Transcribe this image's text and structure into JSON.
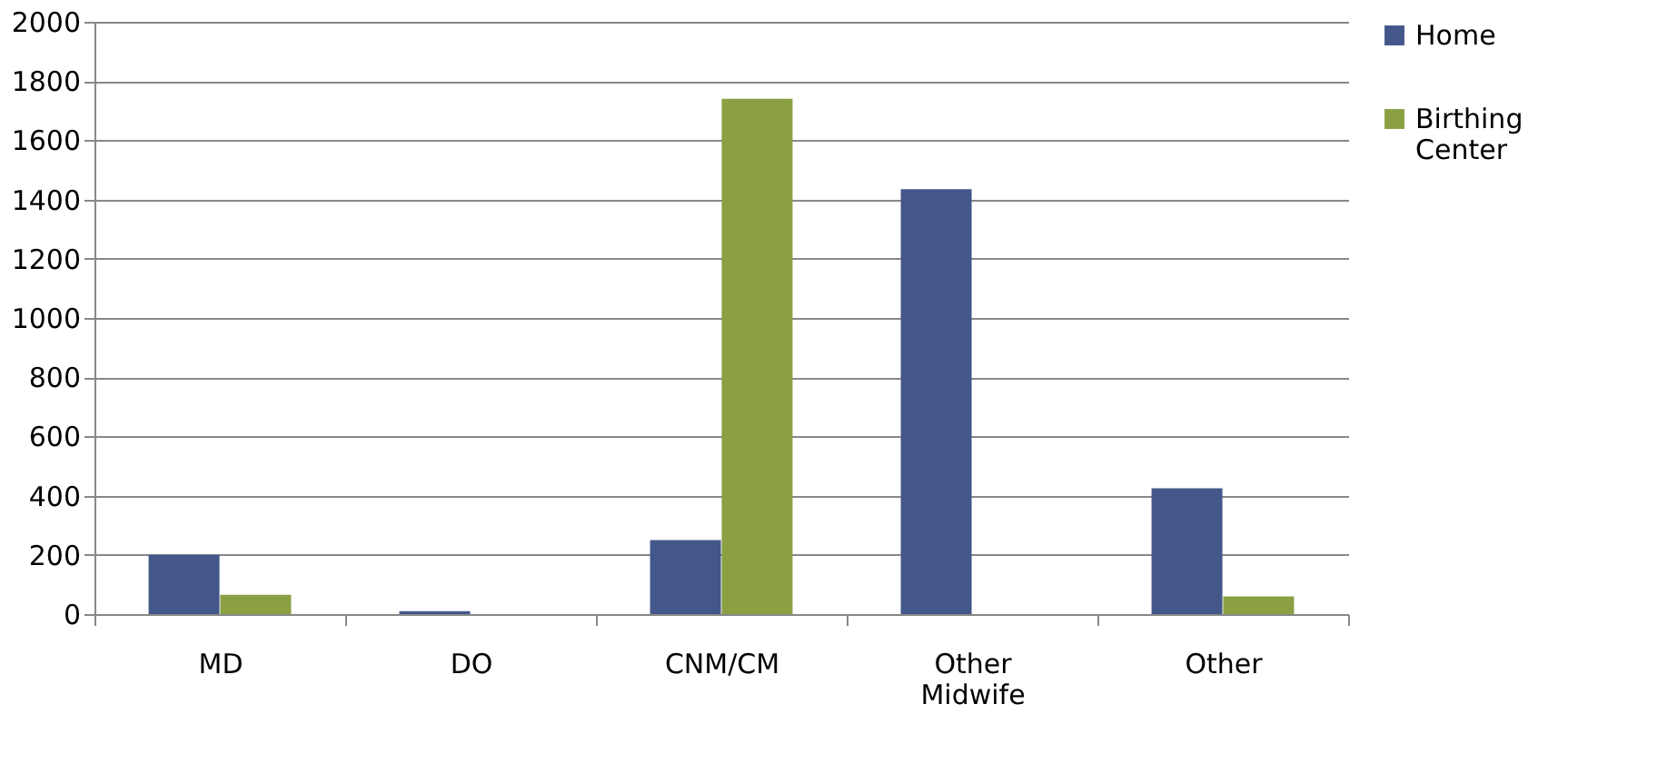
{
  "chart_data": {
    "type": "bar",
    "categories": [
      "MD",
      "DO",
      "CNM/CM",
      "Other Midwife",
      "Other"
    ],
    "series": [
      {
        "name": "Home",
        "color": "#44578a",
        "values": [
          200,
          10,
          250,
          1435,
          425
        ]
      },
      {
        "name": "Birthing Center",
        "color": "#8aa043",
        "values": [
          65,
          0,
          1740,
          0,
          60
        ]
      }
    ],
    "ylim": [
      0,
      2000
    ],
    "yticks": [
      0,
      200,
      400,
      600,
      800,
      1000,
      1200,
      1400,
      1600,
      1800,
      2000
    ],
    "grid": "y",
    "legend": "right"
  }
}
